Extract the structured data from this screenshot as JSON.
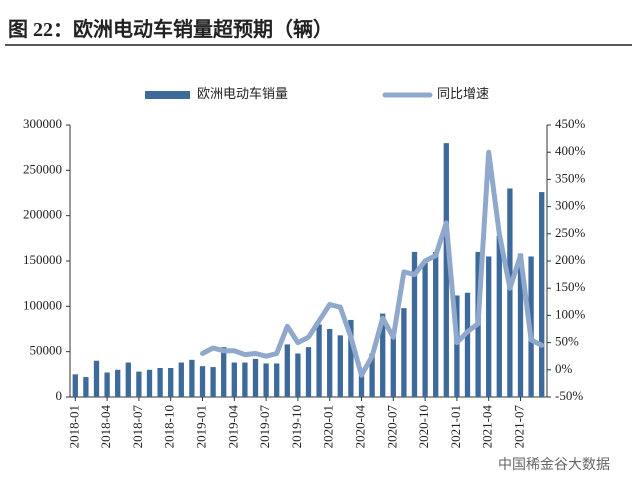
{
  "chart_data": {
    "type": "bar_line",
    "title": "图 22：欧洲电动车销量超预期（辆）",
    "categories": [
      "2018-01",
      null,
      null,
      "2018-04",
      null,
      null,
      "2018-07",
      null,
      null,
      "2018-10",
      null,
      null,
      "2019-01",
      null,
      null,
      "2019-04",
      null,
      null,
      "2019-07",
      null,
      null,
      "2019-10",
      null,
      null,
      "2020-01",
      null,
      null,
      "2020-04",
      null,
      null,
      "2020-07",
      null,
      null,
      "2020-10",
      null,
      null,
      "2021-01",
      null,
      null,
      "2021-04",
      null,
      null,
      "2021-07",
      null,
      null
    ],
    "series": [
      {
        "name": "欧洲电动车销量",
        "color": "#3d6a9b",
        "axis": "y",
        "values": [
          25000,
          22000,
          40000,
          27000,
          30000,
          38000,
          28000,
          30000,
          32000,
          32000,
          38000,
          41000,
          34000,
          33000,
          55000,
          38000,
          38000,
          42000,
          37000,
          37000,
          58000,
          48000,
          55000,
          80000,
          75000,
          68000,
          85000,
          30000,
          48000,
          92000,
          68000,
          98000,
          160000,
          148000,
          160000,
          280000,
          112000,
          115000,
          160000,
          155000,
          178000,
          230000,
          158000,
          155000,
          226000
        ]
      },
      {
        "name": "同比增速",
        "color": "#8fa8cc",
        "axis": "y2",
        "values": [
          null,
          null,
          null,
          null,
          null,
          null,
          null,
          null,
          null,
          null,
          null,
          null,
          30,
          40,
          35,
          35,
          28,
          30,
          25,
          30,
          80,
          50,
          60,
          90,
          120,
          115,
          60,
          -10,
          25,
          95,
          60,
          180,
          175,
          200,
          210,
          270,
          50,
          70,
          85,
          400,
          250,
          150,
          210,
          55,
          45
        ]
      }
    ],
    "ylim": [
      0,
      300000
    ],
    "yticks": [
      0,
      50000,
      100000,
      150000,
      200000,
      250000,
      300000
    ],
    "y2lim": [
      -50,
      450
    ],
    "y2ticks": [
      {
        "value": -50,
        "label": "-50%"
      },
      {
        "value": 0,
        "label": "0%"
      },
      {
        "value": 50,
        "label": "50%"
      },
      {
        "value": 100,
        "label": "100%"
      },
      {
        "value": 150,
        "label": "150%"
      },
      {
        "value": 200,
        "label": "200%"
      },
      {
        "value": 250,
        "label": "250%"
      },
      {
        "value": 300,
        "label": "300%"
      },
      {
        "value": 350,
        "label": "350%"
      },
      {
        "value": 400,
        "label": "400%"
      },
      {
        "value": 450,
        "label": "450%"
      }
    ],
    "legend": "top",
    "source": "中国稀金谷大数据"
  }
}
